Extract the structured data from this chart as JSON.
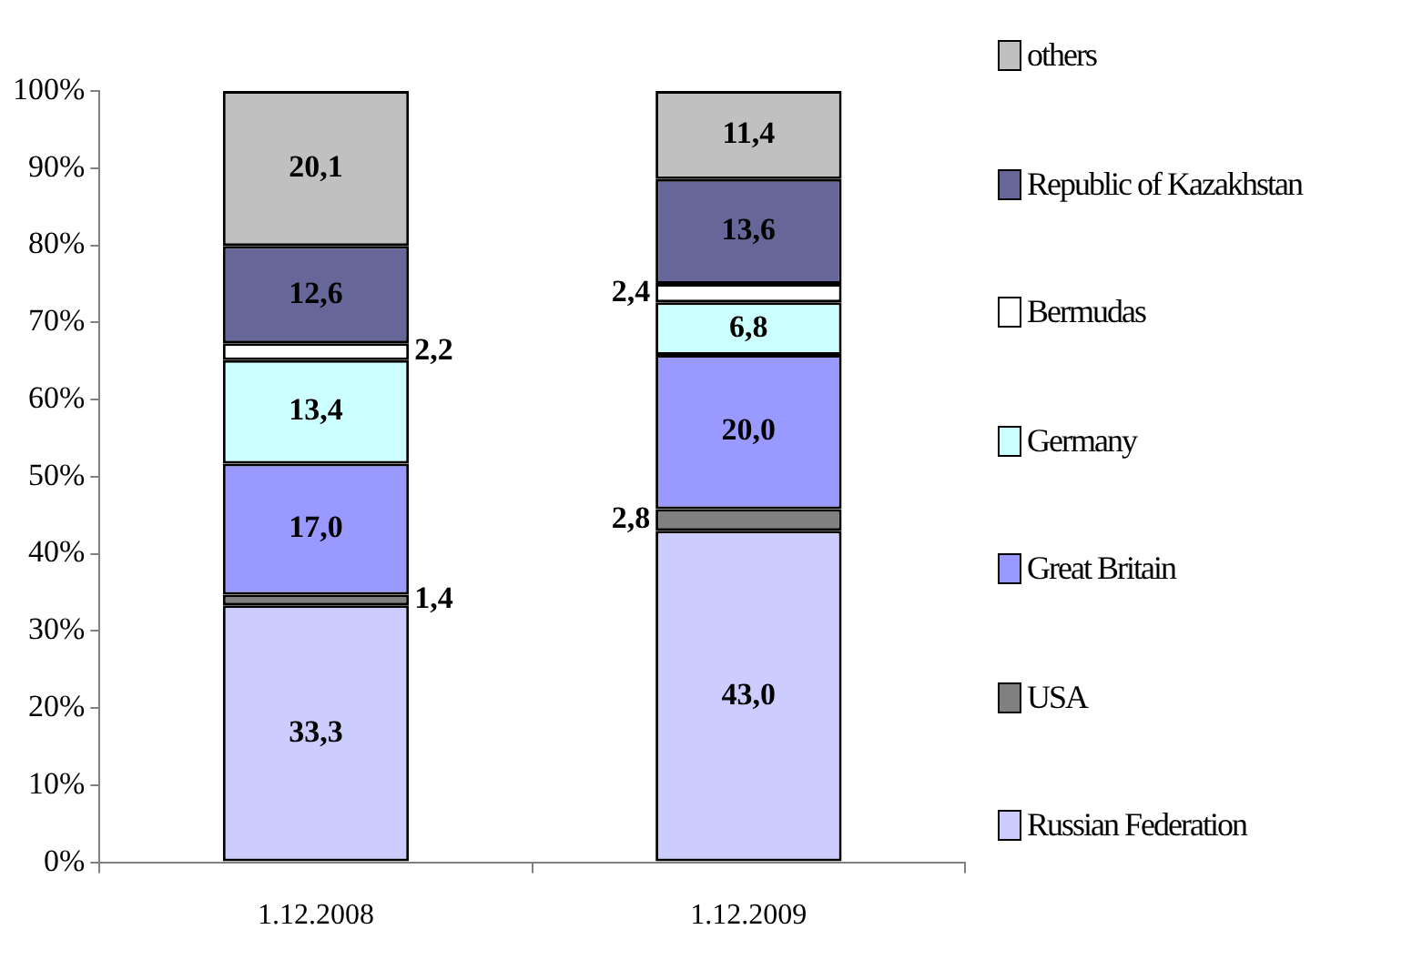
{
  "chart_data": {
    "type": "bar",
    "stacked": true,
    "categories": [
      "1.12.2008",
      "1.12.2009"
    ],
    "ylim": [
      0,
      100
    ],
    "yticks": [
      {
        "value": 0,
        "label": "0%"
      },
      {
        "value": 10,
        "label": "10%"
      },
      {
        "value": 20,
        "label": "20%"
      },
      {
        "value": 30,
        "label": "30%"
      },
      {
        "value": 40,
        "label": "40%"
      },
      {
        "value": 50,
        "label": "50%"
      },
      {
        "value": 60,
        "label": "60%"
      },
      {
        "value": 70,
        "label": "70%"
      },
      {
        "value": 80,
        "label": "80%"
      },
      {
        "value": 90,
        "label": "90%"
      },
      {
        "value": 100,
        "label": "100%"
      }
    ],
    "legend": "right",
    "series": [
      {
        "name": "Russian Federation",
        "color": "#ccccff",
        "values": [
          33.3,
          43.0
        ],
        "value_labels": [
          "33,3",
          "43,0"
        ]
      },
      {
        "name": "USA",
        "color": "#808080",
        "values": [
          1.4,
          2.8
        ],
        "value_labels": [
          "1,4",
          "2,8"
        ]
      },
      {
        "name": "Great Britain",
        "color": "#9999ff",
        "values": [
          17.0,
          20.0
        ],
        "value_labels": [
          "17,0",
          "20,0"
        ]
      },
      {
        "name": "Germany",
        "color": "#ccffff",
        "values": [
          13.4,
          6.8
        ],
        "value_labels": [
          "13,4",
          "6,8"
        ]
      },
      {
        "name": "Bermudas",
        "color": "#ffffff",
        "values": [
          2.2,
          2.4
        ],
        "value_labels": [
          "2,2",
          "2,4"
        ]
      },
      {
        "name": "Republic of Kazakhstan",
        "color": "#666699",
        "values": [
          12.6,
          13.6
        ],
        "value_labels": [
          "12,6",
          "13,6"
        ]
      },
      {
        "name": "others",
        "color": "#c0c0c0",
        "values": [
          20.1,
          11.4
        ],
        "value_labels": [
          "20,1",
          "11,4"
        ]
      }
    ]
  }
}
